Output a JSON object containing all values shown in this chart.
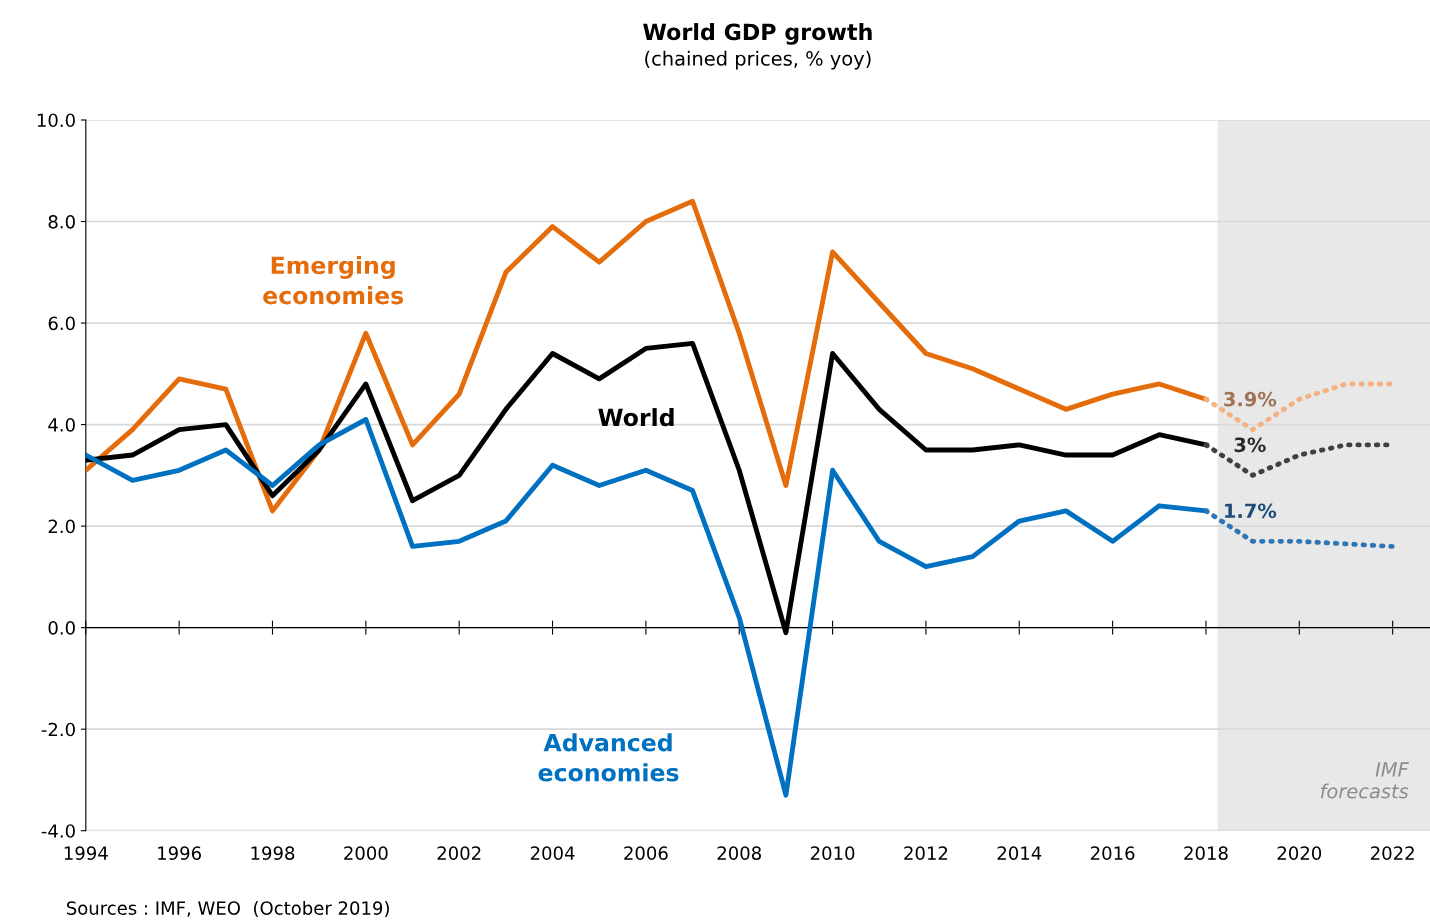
{
  "chart_data": {
    "type": "line",
    "title": "World GDP growth",
    "subtitle": "(chained prices, % yoy)",
    "x": [
      1994,
      1995,
      1996,
      1997,
      1998,
      1999,
      2000,
      2001,
      2002,
      2003,
      2004,
      2005,
      2006,
      2007,
      2008,
      2009,
      2010,
      2011,
      2012,
      2013,
      2014,
      2015,
      2016,
      2017,
      2018
    ],
    "series": [
      {
        "name": "Emerging economies",
        "color": "#e46c0a",
        "values": [
          3.1,
          3.9,
          4.9,
          4.7,
          2.3,
          3.5,
          5.8,
          3.6,
          4.6,
          7.0,
          7.9,
          7.2,
          8.0,
          8.4,
          5.8,
          2.8,
          7.4,
          6.4,
          5.4,
          5.1,
          4.7,
          4.3,
          4.6,
          4.8,
          4.5
        ]
      },
      {
        "name": "World",
        "color": "#000000",
        "values": [
          3.3,
          3.4,
          3.9,
          4.0,
          2.6,
          3.5,
          4.8,
          2.5,
          3.0,
          4.3,
          5.4,
          4.9,
          5.5,
          5.6,
          3.1,
          -0.1,
          5.4,
          4.3,
          3.5,
          3.5,
          3.6,
          3.4,
          3.4,
          3.8,
          3.6
        ]
      },
      {
        "name": "Advanced economies",
        "color": "#0070c0",
        "values": [
          3.4,
          2.9,
          3.1,
          3.5,
          2.8,
          3.6,
          4.1,
          1.6,
          1.7,
          2.1,
          3.2,
          2.8,
          3.1,
          2.7,
          0.2,
          -3.3,
          3.1,
          1.7,
          1.2,
          1.4,
          2.1,
          2.3,
          1.7,
          2.4,
          2.3
        ]
      },
      {
        "color": "#f4b183",
        "line_style": "dotted",
        "x": [
          2018,
          2019,
          2020,
          2021,
          2022
        ],
        "values": [
          4.5,
          3.9,
          4.5,
          4.8,
          4.8
        ],
        "value_labels": [
          null,
          "3.9%",
          null,
          null,
          null
        ]
      },
      {
        "color": "#404040",
        "line_style": "dotted",
        "x": [
          2018,
          2019,
          2020,
          2021,
          2022
        ],
        "values": [
          3.6,
          3.0,
          3.4,
          3.6,
          3.6
        ],
        "value_labels": [
          null,
          "3%",
          null,
          null,
          null
        ]
      },
      {
        "color": "#2e75b6",
        "line_style": "dotted",
        "x": [
          2018,
          2019,
          2020,
          2021,
          2022
        ],
        "values": [
          2.3,
          1.7,
          1.7,
          1.65,
          1.6
        ],
        "value_labels": [
          null,
          "1.7%",
          null,
          null,
          null
        ]
      }
    ],
    "xlim": [
      1994,
      2022.8
    ],
    "xticks": [
      1994,
      1996,
      1998,
      2000,
      2002,
      2004,
      2006,
      2008,
      2010,
      2012,
      2014,
      2016,
      2018,
      2020,
      2022
    ],
    "ylim": [
      -4,
      10
    ],
    "yticks": [
      {
        "value": -4,
        "label": "-4.0"
      },
      {
        "value": -2,
        "label": "-2.0"
      },
      {
        "value": 0,
        "label": "0.0"
      },
      {
        "value": 2,
        "label": "2.0"
      },
      {
        "value": 4,
        "label": "4.0"
      },
      {
        "value": 6,
        "label": "6.0"
      },
      {
        "value": 8,
        "label": "8.0"
      },
      {
        "value": 10,
        "label": "10.0"
      }
    ],
    "bands": [
      {
        "axis": "x",
        "from": 2018.25,
        "to": 2022.8,
        "label": "IMF forecasts",
        "color": "#e8e8e8"
      }
    ],
    "grid": "y",
    "legend": false,
    "marker": "none",
    "line_style": "solid",
    "annotations": [
      "Sources : IMF, WEO  (October 2019)"
    ]
  }
}
